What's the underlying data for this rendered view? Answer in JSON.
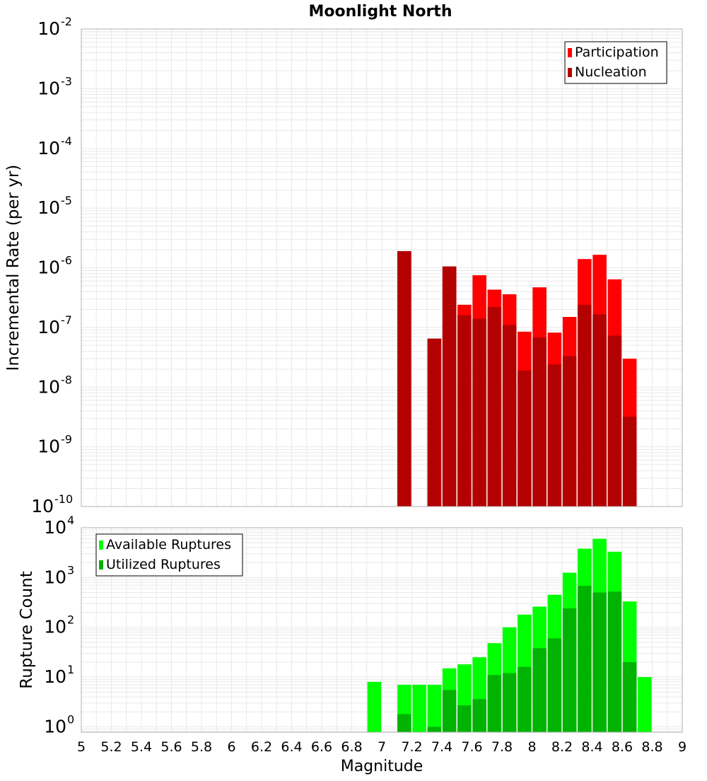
{
  "chart_data": [
    {
      "type": "bar",
      "title": "Moonlight North",
      "xlabel": "",
      "ylabel": "Incremental Rate (per yr)",
      "yscale": "log",
      "ylim": [
        1e-10,
        0.01
      ],
      "xlim": [
        5,
        9
      ],
      "y_ticks": [
        {
          "base": "10",
          "exp": "-2",
          "value": 0.01
        },
        {
          "base": "10",
          "exp": "-3",
          "value": 0.001
        },
        {
          "base": "10",
          "exp": "-4",
          "value": 0.0001
        },
        {
          "base": "10",
          "exp": "-5",
          "value": 1e-05
        },
        {
          "base": "10",
          "exp": "-6",
          "value": 1e-06
        },
        {
          "base": "10",
          "exp": "-7",
          "value": 1e-07
        },
        {
          "base": "10",
          "exp": "-8",
          "value": 1e-08
        },
        {
          "base": "10",
          "exp": "-9",
          "value": 1e-09
        },
        {
          "base": "10",
          "exp": "-10",
          "value": 1e-10
        }
      ],
      "grid": true,
      "legend_position": "top-right",
      "series": [
        {
          "name": "Participation",
          "color": "#ff0000",
          "x": [
            7.15,
            7.35,
            7.45,
            7.55,
            7.65,
            7.75,
            7.85,
            7.95,
            8.05,
            8.15,
            8.25,
            8.35,
            8.45,
            8.55,
            8.65
          ],
          "values": [
            1.9e-06,
            6.5e-08,
            1.05e-06,
            2.4e-07,
            7.5e-07,
            4.3e-07,
            3.6e-07,
            8.5e-08,
            4.7e-07,
            8.2e-08,
            1.5e-07,
            1.4e-06,
            1.65e-06,
            6.4e-07,
            3e-08
          ]
        },
        {
          "name": "Nucleation",
          "color": "#b30000",
          "x": [
            7.15,
            7.35,
            7.45,
            7.55,
            7.65,
            7.75,
            7.85,
            7.95,
            8.05,
            8.15,
            8.25,
            8.35,
            8.45,
            8.55,
            8.65
          ],
          "values": [
            1.9e-06,
            6.5e-08,
            1.05e-06,
            1.6e-07,
            1.4e-07,
            2.2e-07,
            1.1e-07,
            1.9e-08,
            6.8e-08,
            2.4e-08,
            3.3e-08,
            2.4e-07,
            1.65e-07,
            7.3e-08,
            3.2e-09
          ]
        }
      ]
    },
    {
      "type": "bar",
      "title": "",
      "xlabel": "Magnitude",
      "ylabel": "Rupture Count",
      "yscale": "log",
      "ylim": [
        0.78,
        10000
      ],
      "xlim": [
        5,
        9
      ],
      "y_ticks": [
        {
          "base": "10",
          "exp": "4",
          "value": 10000
        },
        {
          "base": "10",
          "exp": "3",
          "value": 1000
        },
        {
          "base": "10",
          "exp": "2",
          "value": 100
        },
        {
          "base": "10",
          "exp": "1",
          "value": 10
        },
        {
          "base": "10",
          "exp": "0",
          "value": 1
        }
      ],
      "x_tick_labels": [
        "5",
        "5.2",
        "5.4",
        "5.6",
        "5.8",
        "6",
        "6.2",
        "6.4",
        "6.6",
        "6.8",
        "7",
        "7.2",
        "7.4",
        "7.6",
        "7.8",
        "8",
        "8.2",
        "8.4",
        "8.6",
        "8.8",
        "9"
      ],
      "grid": true,
      "legend_position": "top-left",
      "series": [
        {
          "name": "Available Ruptures",
          "color": "#00ff00",
          "x": [
            6.95,
            7.15,
            7.25,
            7.35,
            7.45,
            7.55,
            7.65,
            7.75,
            7.85,
            7.95,
            8.05,
            8.15,
            8.25,
            8.35,
            8.45,
            8.55,
            8.65,
            8.75
          ],
          "values": [
            8,
            7,
            7,
            7,
            15,
            18,
            25,
            48,
            100,
            180,
            260,
            450,
            1250,
            3800,
            6000,
            3300,
            330,
            10
          ]
        },
        {
          "name": "Utilized Ruptures",
          "color": "#00b300",
          "x": [
            7.15,
            7.35,
            7.45,
            7.55,
            7.65,
            7.75,
            7.85,
            7.95,
            8.05,
            8.15,
            8.25,
            8.35,
            8.45,
            8.55,
            8.65
          ],
          "values": [
            1.8,
            1.0,
            5.5,
            2.7,
            3.6,
            11,
            12,
            16,
            38,
            60,
            240,
            680,
            500,
            520,
            20
          ]
        }
      ]
    }
  ]
}
